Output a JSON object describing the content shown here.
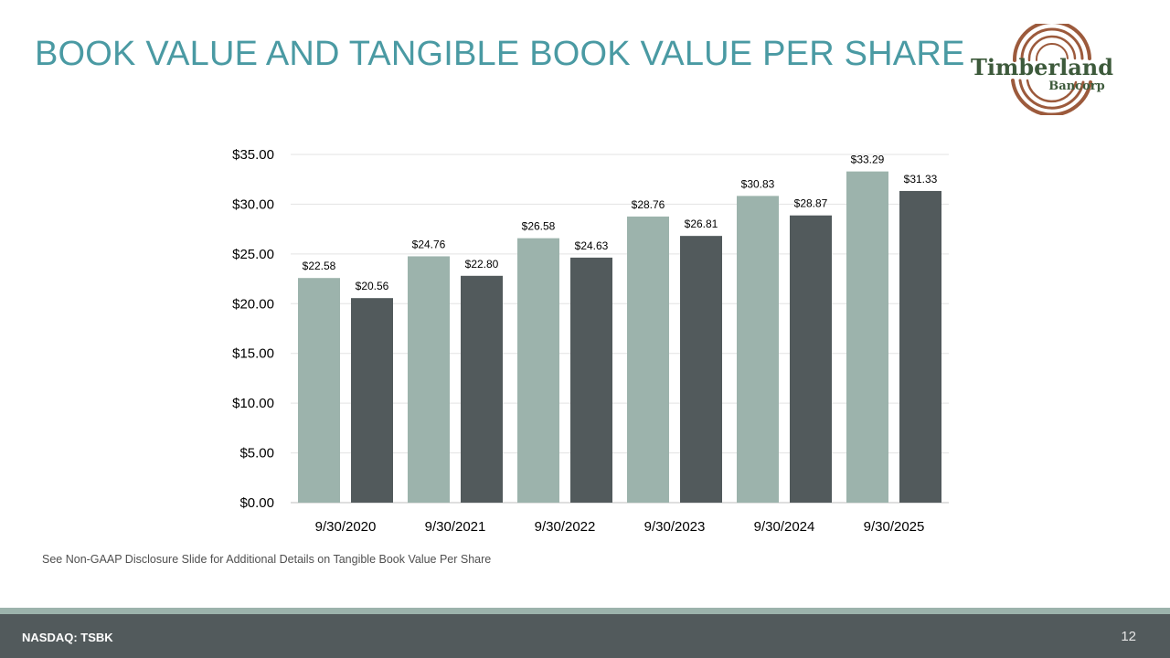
{
  "slide": {
    "title": "BOOK VALUE AND TANGIBLE BOOK VALUE PER SHARE",
    "footnote": "See Non-GAAP Disclosure Slide for Additional Details on Tangible Book Value Per Share",
    "footer_left": "NASDAQ: TSBK",
    "page_number": "12",
    "logo": {
      "line1": "Timberland",
      "line2": "Bancorp",
      "icon": "tree-ring-logo"
    }
  },
  "colors": {
    "title": "#4a9aa3",
    "series_1": "#9cb3ac",
    "series_2": "#525a5c",
    "footer": "#525a5c",
    "footer_stripe": "#9cb3ac",
    "logo_text": "#3d5a3b",
    "logo_ring": "#9c5a3c"
  },
  "chart_data": {
    "type": "bar",
    "categories": [
      "9/30/2020",
      "9/30/2021",
      "9/30/2022",
      "9/30/2023",
      "9/30/2024",
      "9/30/2025"
    ],
    "series": [
      {
        "values": [
          22.58,
          24.76,
          26.58,
          28.76,
          30.83,
          33.29
        ],
        "labels": [
          "$22.58",
          "$24.76",
          "$26.58",
          "$28.76",
          "$30.83",
          "$33.29"
        ]
      },
      {
        "values": [
          20.56,
          22.8,
          24.63,
          26.81,
          28.87,
          31.33
        ],
        "labels": [
          "$20.56",
          "$22.80",
          "$24.63",
          "$26.81",
          "$28.87",
          "$31.33"
        ]
      }
    ],
    "ylim": [
      0,
      35
    ],
    "yticks": [
      0,
      5,
      10,
      15,
      20,
      25,
      30,
      35
    ],
    "ytick_labels": [
      "$0.00",
      "$5.00",
      "$10.00",
      "$15.00",
      "$20.00",
      "$25.00",
      "$30.00",
      "$35.00"
    ],
    "grid": true,
    "legend": "none",
    "xlabel": "",
    "ylabel": ""
  }
}
